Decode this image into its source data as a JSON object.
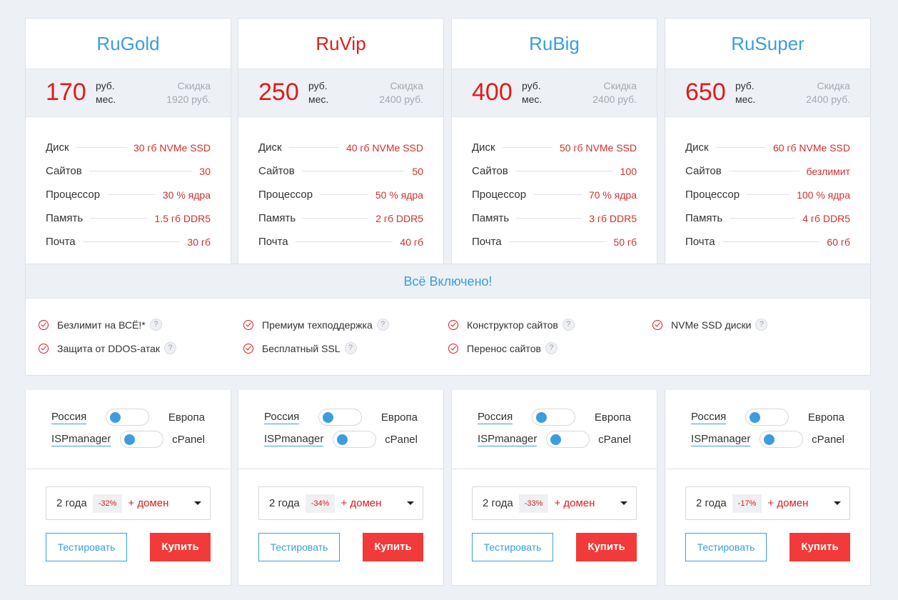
{
  "plans": [
    {
      "name": "RuGold",
      "price": "170",
      "unit1": "руб.",
      "unit2": "мес.",
      "disc1": "Скидка",
      "disc2": "1920 руб.",
      "specs": [
        [
          "Диск",
          "30 гб NVMe SSD"
        ],
        [
          "Сайтов",
          "30"
        ],
        [
          "Процессор",
          "30 % ядра"
        ],
        [
          "Память",
          "1.5 гб DDR5"
        ],
        [
          "Почта",
          "30 гб"
        ]
      ],
      "loc_left": "Россия",
      "loc_right": "Европа",
      "panel_left": "ISPmanager",
      "panel_right": "cPanel",
      "term": "2 года",
      "badge": "-32%",
      "domain": "+ домен",
      "test": "Тестировать",
      "buy": "Купить"
    },
    {
      "name": "RuVip",
      "price": "250",
      "unit1": "руб.",
      "unit2": "мес.",
      "disc1": "Скидка",
      "disc2": "2400 руб.",
      "specs": [
        [
          "Диск",
          "40 гб NVMe SSD"
        ],
        [
          "Сайтов",
          "50"
        ],
        [
          "Процессор",
          "50 % ядра"
        ],
        [
          "Память",
          "2 гб DDR5"
        ],
        [
          "Почта",
          "40 гб"
        ]
      ],
      "loc_left": "Россия",
      "loc_right": "Европа",
      "panel_left": "ISPmanager",
      "panel_right": "cPanel",
      "term": "2 года",
      "badge": "-34%",
      "domain": "+ домен",
      "test": "Тестировать",
      "buy": "Купить"
    },
    {
      "name": "RuBig",
      "price": "400",
      "unit1": "руб.",
      "unit2": "мес.",
      "disc1": "Скидка",
      "disc2": "2400 руб.",
      "specs": [
        [
          "Диск",
          "50 гб NVMe SSD"
        ],
        [
          "Сайтов",
          "100"
        ],
        [
          "Процессор",
          "70 % ядра"
        ],
        [
          "Память",
          "3 гб DDR5"
        ],
        [
          "Почта",
          "50 гб"
        ]
      ],
      "loc_left": "Россия",
      "loc_right": "Европа",
      "panel_left": "ISPmanager",
      "panel_right": "cPanel",
      "term": "2 года",
      "badge": "-33%",
      "domain": "+ домен",
      "test": "Тестировать",
      "buy": "Купить"
    },
    {
      "name": "RuSuper",
      "price": "650",
      "unit1": "руб.",
      "unit2": "мес.",
      "disc1": "Скидка",
      "disc2": "2400 руб.",
      "specs": [
        [
          "Диск",
          "60 гб NVMe SSD"
        ],
        [
          "Сайтов",
          "безлимит"
        ],
        [
          "Процессор",
          "100 % ядра"
        ],
        [
          "Память",
          "4 гб DDR5"
        ],
        [
          "Почта",
          "60 гб"
        ]
      ],
      "loc_left": "Россия",
      "loc_right": "Европа",
      "panel_left": "ISPmanager",
      "panel_right": "cPanel",
      "term": "2 года",
      "badge": "-17%",
      "domain": "+ домен",
      "test": "Тестировать",
      "buy": "Купить"
    }
  ],
  "included": {
    "title": "Всё Включено!",
    "features": [
      "Безлимит на ВСЁ!*",
      "Премиум техподдержка",
      "Конструктор сайтов",
      "NVMe SSD диски",
      "Защита от DDOS-атак",
      "Бесплатный SSL",
      "Перенос сайтов"
    ],
    "help_glyph": "?"
  },
  "colors": {
    "accent": "#3b9de0",
    "red": "#e01b1b",
    "buy": "#f23a3a",
    "bg": "#edf0f4"
  }
}
